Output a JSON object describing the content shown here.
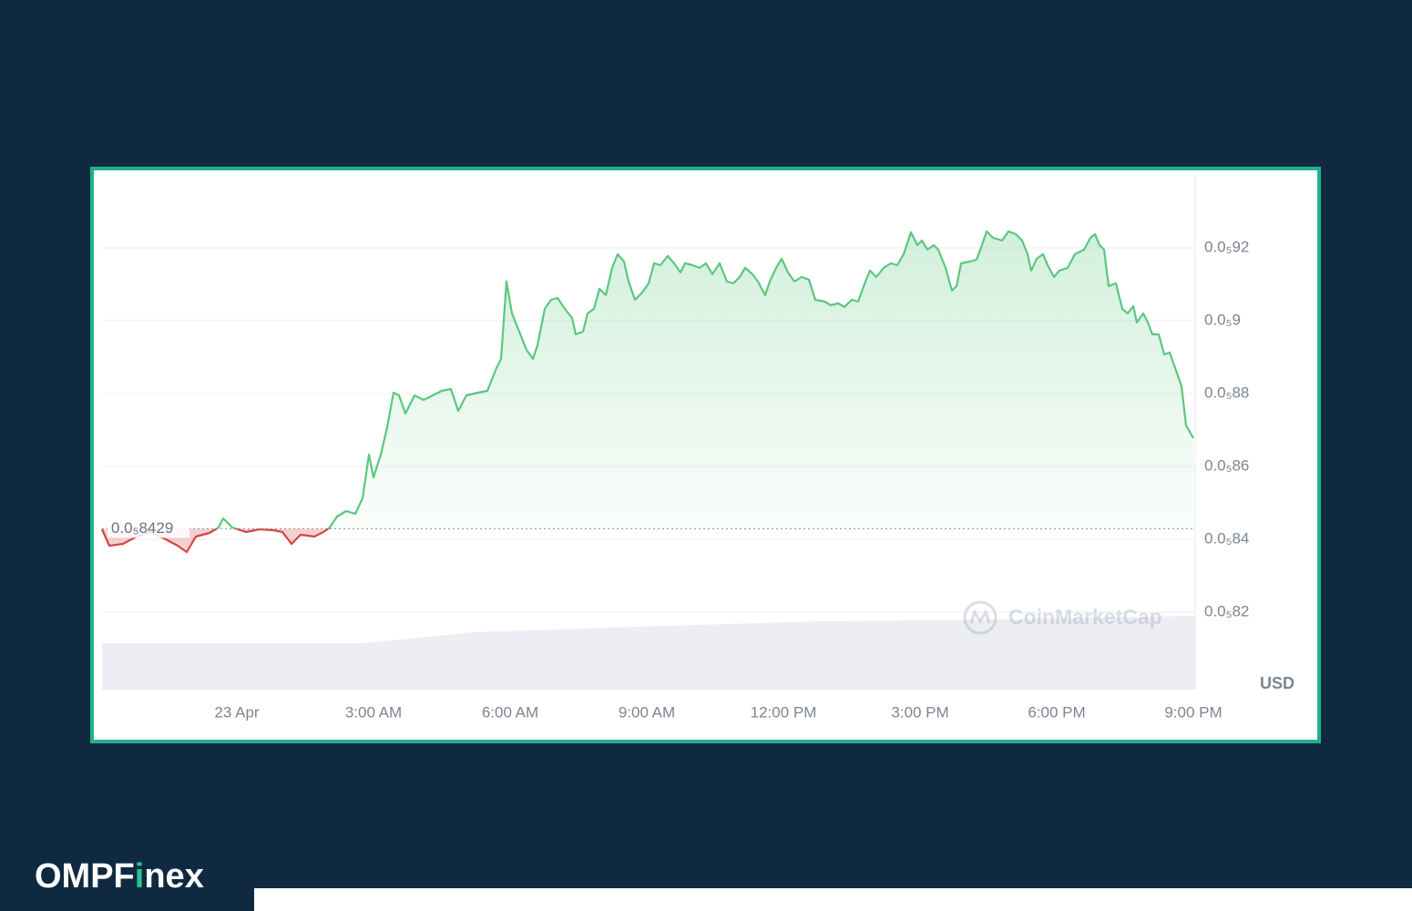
{
  "chart_data": {
    "type": "line",
    "x": [
      -2.96,
      -2.8,
      -2.5,
      -2.2,
      -1.9,
      -1.6,
      -1.3,
      -1.1,
      -0.9,
      -0.6,
      -0.4,
      -0.3,
      -0.1,
      0.2,
      0.5,
      0.8,
      1.0,
      1.2,
      1.4,
      1.7,
      1.9,
      2.04,
      2.2,
      2.4,
      2.6,
      2.76,
      2.9,
      3.0,
      3.16,
      3.3,
      3.44,
      3.56,
      3.7,
      3.9,
      4.1,
      4.3,
      4.5,
      4.7,
      4.86,
      5.04,
      5.3,
      5.5,
      5.7,
      5.8,
      5.92,
      6.04,
      6.2,
      6.36,
      6.5,
      6.6,
      6.76,
      6.9,
      7.04,
      7.2,
      7.36,
      7.44,
      7.6,
      7.7,
      7.84,
      7.96,
      8.1,
      8.24,
      8.36,
      8.5,
      8.6,
      8.74,
      8.9,
      9.04,
      9.16,
      9.3,
      9.46,
      9.6,
      9.74,
      9.84,
      10.0,
      10.16,
      10.3,
      10.44,
      10.6,
      10.76,
      10.9,
      11.04,
      11.16,
      11.32,
      11.44,
      11.6,
      11.7,
      11.84,
      11.96,
      12.1,
      12.24,
      12.4,
      12.56,
      12.7,
      12.9,
      13.04,
      13.2,
      13.34,
      13.5,
      13.64,
      13.8,
      13.9,
      14.04,
      14.2,
      14.36,
      14.5,
      14.64,
      14.8,
      14.94,
      15.04,
      15.16,
      15.3,
      15.4,
      15.56,
      15.7,
      15.8,
      15.9,
      16.1,
      16.24,
      16.36,
      16.46,
      16.6,
      16.8,
      16.94,
      17.1,
      17.24,
      17.36,
      17.44,
      17.56,
      17.7,
      17.8,
      17.94,
      18.06,
      18.24,
      18.4,
      18.6,
      18.74,
      18.84,
      18.94,
      19.04,
      19.14,
      19.3,
      19.44,
      19.56,
      19.68,
      19.76,
      19.9,
      20.0,
      20.1,
      20.24,
      20.36,
      20.48,
      20.6,
      20.74,
      20.84,
      21.0
    ],
    "values": [
      8.4275e-07,
      8.3825e-07,
      8.3875e-07,
      8.4075e-07,
      8.42e-07,
      8.4025e-07,
      8.3825e-07,
      8.365e-07,
      8.4075e-07,
      8.4175e-07,
      8.4325e-07,
      8.4575e-07,
      8.4325e-07,
      8.42e-07,
      8.4275e-07,
      8.425e-07,
      8.42e-07,
      8.3875e-07,
      8.4125e-07,
      8.4075e-07,
      8.42e-07,
      8.4325e-07,
      8.4625e-07,
      8.4775e-07,
      8.47e-07,
      8.5125e-07,
      8.6325e-07,
      8.57e-07,
      8.6325e-07,
      8.7075e-07,
      8.8025e-07,
      8.795e-07,
      8.745e-07,
      8.795e-07,
      8.7825e-07,
      8.795e-07,
      8.8075e-07,
      8.8125e-07,
      8.7525e-07,
      8.795e-07,
      8.8025e-07,
      8.8075e-07,
      8.87e-07,
      8.895e-07,
      9.1075e-07,
      9.02e-07,
      8.97e-07,
      8.92e-07,
      8.895e-07,
      8.9325e-07,
      9.0325e-07,
      9.0575e-07,
      9.0625e-07,
      9.0325e-07,
      9.0075e-07,
      8.9625e-07,
      8.97e-07,
      9.02e-07,
      9.0325e-07,
      9.0875e-07,
      9.07e-07,
      9.145e-07,
      9.1825e-07,
      9.1625e-07,
      9.1075e-07,
      9.0575e-07,
      9.0775e-07,
      9.1025e-07,
      9.1575e-07,
      9.1525e-07,
      9.1775e-07,
      9.1575e-07,
      9.1325e-07,
      9.1575e-07,
      9.1525e-07,
      9.145e-07,
      9.1575e-07,
      9.1275e-07,
      9.1575e-07,
      9.1075e-07,
      9.1025e-07,
      9.12e-07,
      9.145e-07,
      9.1275e-07,
      9.1075e-07,
      9.07e-07,
      9.1075e-07,
      9.145e-07,
      9.17e-07,
      9.1325e-07,
      9.1075e-07,
      9.12e-07,
      9.1125e-07,
      9.0575e-07,
      9.0525e-07,
      9.0425e-07,
      9.0475e-07,
      9.0375e-07,
      9.0575e-07,
      9.0525e-07,
      9.1075e-07,
      9.1375e-07,
      9.12e-07,
      9.145e-07,
      9.1575e-07,
      9.1525e-07,
      9.1825e-07,
      9.2425e-07,
      9.2075e-07,
      9.22e-07,
      9.195e-07,
      9.2075e-07,
      9.195e-07,
      9.145e-07,
      9.0825e-07,
      9.095e-07,
      9.1575e-07,
      9.1625e-07,
      9.1675e-07,
      9.2075e-07,
      9.245e-07,
      9.2275e-07,
      9.22e-07,
      9.245e-07,
      9.2375e-07,
      9.22e-07,
      9.1825e-07,
      9.1375e-07,
      9.17e-07,
      9.1825e-07,
      9.1525e-07,
      9.12e-07,
      9.1375e-07,
      9.145e-07,
      9.1825e-07,
      9.195e-07,
      9.2275e-07,
      9.2375e-07,
      9.2075e-07,
      9.195e-07,
      9.095e-07,
      9.1025e-07,
      9.0325e-07,
      9.02e-07,
      9.04e-07,
      8.995e-07,
      9.02e-07,
      8.995e-07,
      8.9625e-07,
      8.9625e-07,
      8.9075e-07,
      8.9125e-07,
      8.87e-07,
      8.82e-07,
      8.7125e-07,
      8.6775e-07
    ],
    "color": "#5cc77e",
    "down_color": "#d64545",
    "reference": {
      "value": 8.429e-07,
      "label": "0.0₅8429"
    },
    "xlim": [
      -2.96,
      21.04
    ],
    "xticks": [
      {
        "value": 0,
        "label": "23 Apr"
      },
      {
        "value": 3,
        "label": "3:00 AM"
      },
      {
        "value": 6,
        "label": "6:00 AM"
      },
      {
        "value": 9,
        "label": "9:00 AM"
      },
      {
        "value": 12,
        "label": "12:00 PM"
      },
      {
        "value": 15,
        "label": "3:00 PM"
      },
      {
        "value": 18,
        "label": "6:00 PM"
      },
      {
        "value": 21,
        "label": "9:00 PM"
      }
    ],
    "ylim": [
      8e-07,
      9.4e-07
    ],
    "yticks": [
      {
        "value": 8.2e-07,
        "label": "0.0₅82"
      },
      {
        "value": 8.4e-07,
        "label": "0.0₅84"
      },
      {
        "value": 8.6e-07,
        "label": "0.0₅86"
      },
      {
        "value": 8.8e-07,
        "label": "0.0₅88"
      },
      {
        "value": 9e-07,
        "label": "0.0₅9"
      },
      {
        "value": 9.2e-07,
        "label": "0.0₅92"
      }
    ],
    "grid": true,
    "watermark": "CoinMarketCap",
    "currency": "USD"
  },
  "brand_parts": [
    "OMPF",
    "i",
    "nex"
  ]
}
